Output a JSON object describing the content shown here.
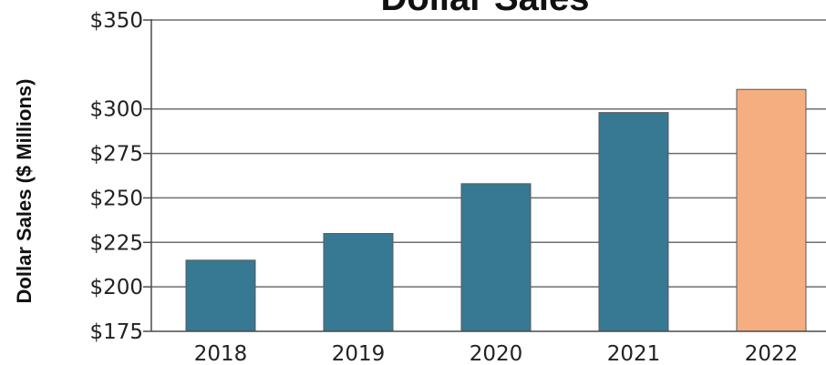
{
  "chart_data": {
    "type": "bar",
    "title": "Dollar Sales",
    "ylabel": "Dollar Sales ($ Millions)",
    "xlabel": "",
    "categories": [
      "2018",
      "2019",
      "2020",
      "2021",
      "2022"
    ],
    "values": [
      215,
      230,
      258,
      298,
      311
    ],
    "ylim": [
      175,
      350
    ],
    "yticks": [
      175,
      200,
      225,
      250,
      275,
      300,
      350
    ],
    "ytick_labels": [
      "$175",
      "$200",
      "$225",
      "$250",
      "$275",
      "$300",
      "$350"
    ],
    "grid": true,
    "colors": {
      "bar": "#377893",
      "highlight": "#f4ae80",
      "highlight_category": "2022"
    }
  }
}
